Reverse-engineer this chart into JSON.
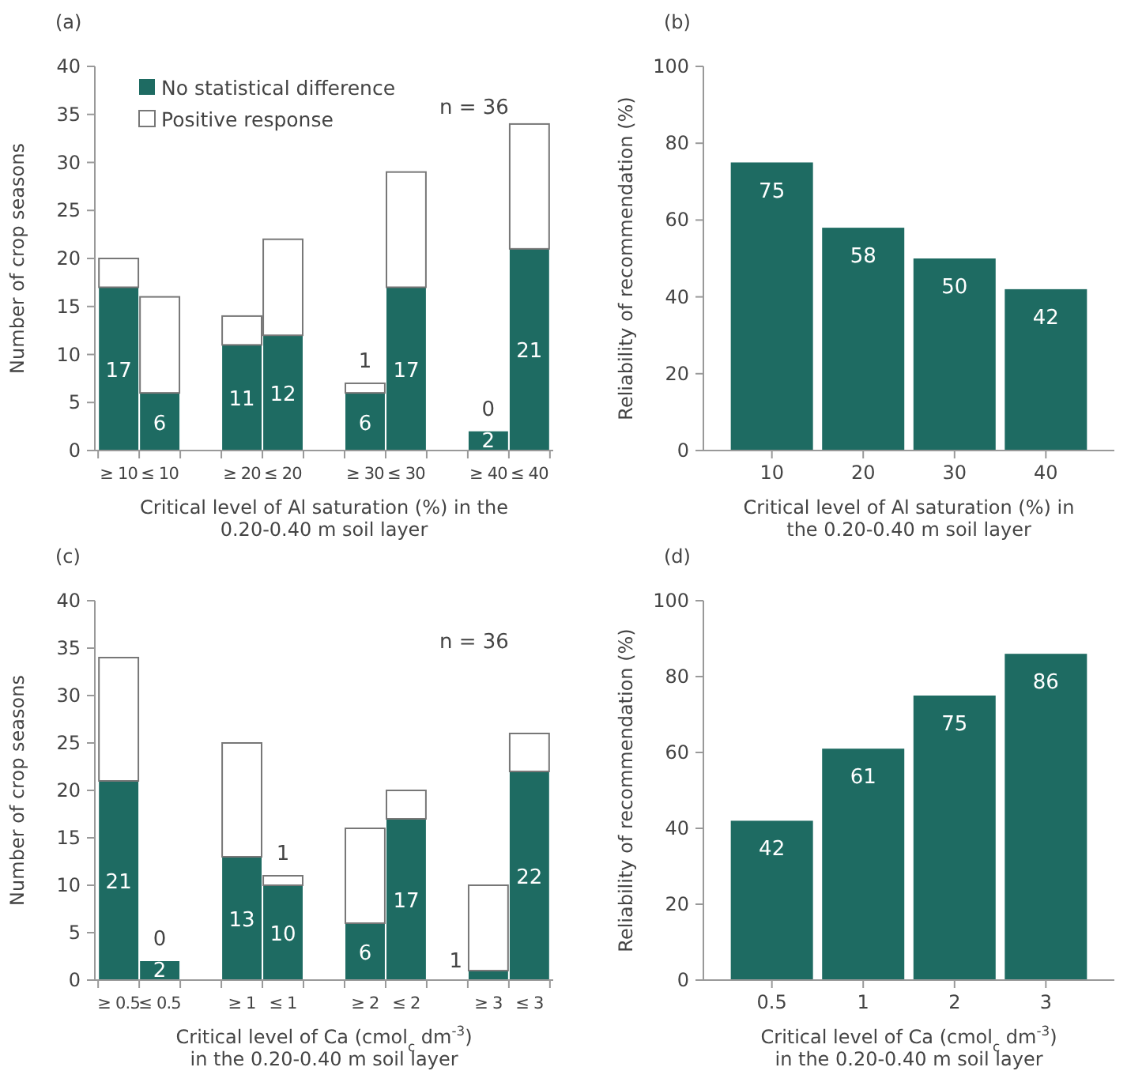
{
  "chart_data": [
    {
      "type": "bar",
      "title": "(a)",
      "stacked": true,
      "xlabel": "Critical level of Al saturation (%) in the\n0.20-0.40 m soil layer",
      "ylabel": "Number of crop seasons",
      "categories": [
        "≥ 10",
        "≤ 10",
        null,
        "≥ 20",
        "≤ 20",
        null,
        "≥ 30",
        "≤ 30",
        null,
        "≥ 40",
        "≤ 40"
      ],
      "ylim": [
        0,
        40
      ],
      "yticks": [
        0,
        5,
        10,
        15,
        20,
        25,
        30,
        35,
        40
      ],
      "legend": "top left",
      "annotations": [
        "n = 36"
      ],
      "series": [
        {
          "name": "No statistical difference",
          "color": "#1e6b62",
          "values": [
            17,
            6,
            null,
            11,
            12,
            null,
            6,
            17,
            null,
            2,
            21
          ],
          "value_labels": [
            "17",
            "6",
            null,
            "11",
            "12",
            null,
            "6",
            "17",
            null,
            "2",
            "21"
          ]
        },
        {
          "name": "Positive response",
          "color": "#ffffff",
          "values": [
            3,
            10,
            null,
            3,
            10,
            null,
            1,
            12,
            null,
            0,
            13
          ],
          "value_labels": [
            null,
            null,
            null,
            null,
            null,
            null,
            "1",
            null,
            null,
            "0",
            null
          ]
        }
      ]
    },
    {
      "type": "bar",
      "title": "(b)",
      "xlabel": "Critical level of Al saturation (%) in\nthe 0.20-0.40 m soil layer",
      "ylabel": "Reliability of recommendation (%)",
      "categories": [
        "10",
        "20",
        "30",
        "40"
      ],
      "values": [
        75,
        58,
        50,
        42
      ],
      "color": "#1e6b62",
      "ylim": [
        0,
        100
      ],
      "yticks": [
        0,
        20,
        40,
        60,
        80,
        100
      ],
      "data_labels": true
    },
    {
      "type": "bar",
      "title": "(c)",
      "stacked": true,
      "xlabel": "Critical level of Ca (cmol$_{c}$ dm$^{-3}$)\nin the 0.20-0.40 m soil layer",
      "ylabel": "Number of crop seasons",
      "categories": [
        "≥ 0.5",
        "≤ 0.5",
        null,
        "≥ 1",
        "≤ 1",
        null,
        "≥ 2",
        "≤ 2",
        null,
        "≥ 3",
        "≤ 3"
      ],
      "ylim": [
        0,
        40
      ],
      "yticks": [
        0,
        5,
        10,
        15,
        20,
        25,
        30,
        35,
        40
      ],
      "annotations": [
        "n = 36"
      ],
      "series": [
        {
          "color": "#1e6b62",
          "values": [
            21,
            2,
            null,
            13,
            10,
            null,
            6,
            17,
            null,
            1,
            22
          ],
          "value_labels": [
            "21",
            "2",
            null,
            "13",
            "10",
            null,
            "6",
            "17",
            null,
            "1",
            "22"
          ]
        },
        {
          "color": "#ffffff",
          "values": [
            13,
            0,
            null,
            12,
            1,
            null,
            10,
            3,
            null,
            9,
            4
          ],
          "value_labels": [
            null,
            "0",
            null,
            null,
            "1",
            null,
            null,
            null,
            null,
            null,
            null
          ]
        }
      ]
    },
    {
      "type": "bar",
      "title": "(d)",
      "xlabel": "Critical level of Ca (cmol$_{c}$ dm$^{-3}$)\nin the 0.20-0.40 m soil layer",
      "ylabel": "Reliability of recommendation (%)",
      "categories": [
        "0.5",
        "1",
        "2",
        "3"
      ],
      "values": [
        42,
        61,
        75,
        86
      ],
      "color": "#1e6b62",
      "ylim": [
        0,
        100
      ],
      "yticks": [
        0,
        20,
        40,
        60,
        80,
        100
      ],
      "data_labels": true
    }
  ]
}
